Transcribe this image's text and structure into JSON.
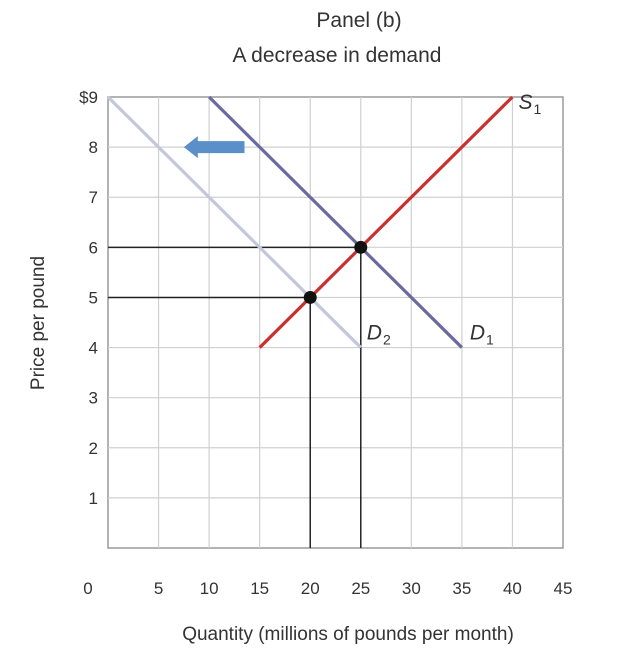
{
  "chart_data": {
    "type": "line",
    "title": "Panel (b)",
    "subtitle": "A decrease in demand",
    "xlabel": "Quantity (millions of pounds per month)",
    "ylabel": "Price per pound",
    "xlim": [
      0,
      45
    ],
    "ylim": [
      0,
      9
    ],
    "x_ticks": [
      0,
      5,
      10,
      15,
      20,
      25,
      30,
      35,
      40,
      45
    ],
    "x_tick_labels": [
      "0",
      "5",
      "10",
      "15",
      "20",
      "25",
      "30",
      "35",
      "40",
      "45"
    ],
    "y_ticks": [
      1,
      2,
      3,
      4,
      5,
      6,
      7,
      8,
      9
    ],
    "y_tick_labels": [
      "1",
      "2",
      "3",
      "4",
      "5",
      "6",
      "7",
      "8",
      "$9"
    ],
    "grid": true,
    "series": [
      {
        "name": "S",
        "subscript": "1",
        "color": "#c8312f",
        "x": [
          15,
          40
        ],
        "y": [
          4,
          9
        ]
      },
      {
        "name": "D",
        "subscript": "1",
        "color": "#6b6a9e",
        "x": [
          10,
          35
        ],
        "y": [
          9,
          4
        ]
      },
      {
        "name": "D",
        "subscript": "2",
        "color": "#c4c6dc",
        "x": [
          0,
          25
        ],
        "y": [
          9,
          4
        ]
      }
    ],
    "equilibria": [
      {
        "x": 25,
        "y": 6
      },
      {
        "x": 20,
        "y": 5
      }
    ],
    "shift_arrow": {
      "direction": "left",
      "color": "#5b8fc9",
      "from_x": 13.5,
      "to_x": 7.5,
      "y": 8
    }
  }
}
